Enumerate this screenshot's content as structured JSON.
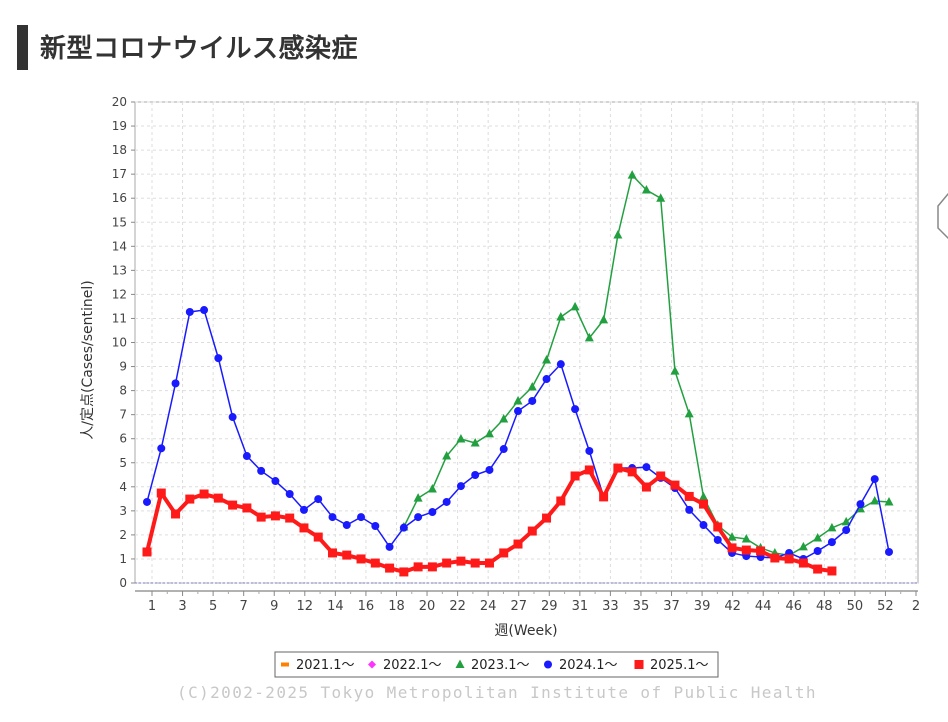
{
  "page": {
    "title": "新型コロナウイルス感染症"
  },
  "copyright": "(C)2002-2025 Tokyo Metropolitan Institute of Public Health",
  "chart_data": {
    "type": "line",
    "title": "",
    "xlabel": "週(Week)",
    "ylabel": "人/定点(Cases/sentinel)",
    "ylim": [
      0,
      20
    ],
    "yticks": [
      0,
      1,
      2,
      3,
      4,
      5,
      6,
      7,
      8,
      9,
      10,
      11,
      12,
      13,
      14,
      15,
      16,
      17,
      18,
      19,
      20
    ],
    "xtick_labels": [
      "1",
      "3",
      "5",
      "7",
      "9",
      "12",
      "14",
      "16",
      "18",
      "20",
      "22",
      "24",
      "27",
      "29",
      "31",
      "33",
      "35",
      "37",
      "39",
      "42",
      "44",
      "46",
      "48",
      "50",
      "52",
      "2"
    ],
    "x_points": 53,
    "grid": true,
    "legend_position": "bottom",
    "series": [
      {
        "name": "2021.1～",
        "color": "#ff8000",
        "marker": "rect-small",
        "values": []
      },
      {
        "name": "2022.1～",
        "color": "#ff33ff",
        "marker": "diamond",
        "values": []
      },
      {
        "name": "2023.1～",
        "color": "#22a040",
        "marker": "triangle",
        "start": 19,
        "values": [
          2.33,
          3.53,
          3.91,
          5.28,
          5.99,
          5.82,
          6.2,
          6.82,
          7.57,
          8.15,
          9.27,
          11.06,
          11.48,
          10.19,
          10.94,
          14.47,
          16.96,
          16.34,
          16.0,
          8.81,
          7.03,
          3.58,
          2.4,
          1.91,
          1.83,
          1.46,
          1.25,
          1.15,
          1.5,
          1.87,
          2.29,
          2.54,
          3.08,
          3.41,
          3.37
        ]
      },
      {
        "name": "2024.1～",
        "color": "#1a1aff",
        "marker": "circle",
        "start": 1,
        "values": [
          3.37,
          5.6,
          8.3,
          11.27,
          11.35,
          9.35,
          6.9,
          5.28,
          4.66,
          4.24,
          3.7,
          3.04,
          3.49,
          2.74,
          2.41,
          2.74,
          2.37,
          1.5,
          2.3,
          2.74,
          2.95,
          3.37,
          4.03,
          4.49,
          4.7,
          5.57,
          7.15,
          7.57,
          8.48,
          9.1,
          7.23,
          5.49,
          3.58,
          4.78,
          4.78,
          4.82,
          4.37,
          3.95,
          3.04,
          2.41,
          1.79,
          1.25,
          1.12,
          1.08,
          1.04,
          1.25,
          1.0,
          1.33,
          1.7,
          2.2,
          3.28,
          4.32,
          1.29
        ]
      },
      {
        "name": "2025.1～",
        "color": "#ff1a1a",
        "marker": "square",
        "start": 1,
        "values": [
          1.29,
          3.74,
          2.87,
          3.49,
          3.7,
          3.53,
          3.24,
          3.12,
          2.74,
          2.79,
          2.7,
          2.29,
          1.91,
          1.25,
          1.16,
          1.0,
          0.83,
          0.62,
          0.46,
          0.67,
          0.67,
          0.83,
          0.91,
          0.83,
          0.83,
          1.25,
          1.62,
          2.16,
          2.7,
          3.41,
          4.45,
          4.7,
          3.58,
          4.78,
          4.62,
          3.99,
          4.45,
          4.07,
          3.6,
          3.28,
          2.33,
          1.46,
          1.37,
          1.33,
          1.04,
          1.0,
          0.83,
          0.58,
          0.5
        ]
      }
    ]
  }
}
